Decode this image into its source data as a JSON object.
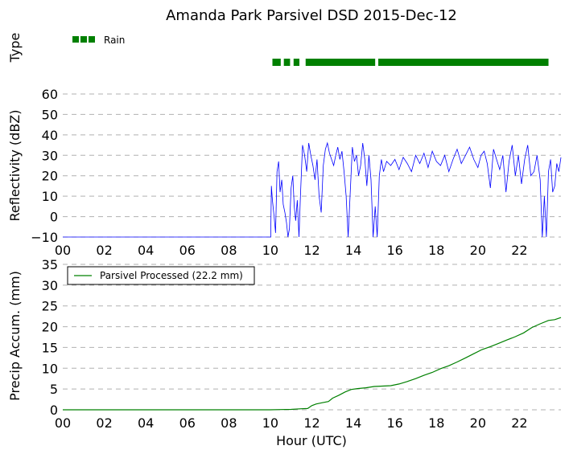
{
  "title": "Amanda Park Parsivel DSD 2015-Dec-12",
  "colors": {
    "rain": "#008000",
    "reflectivity": "#0000ff",
    "accum": "#008000",
    "grid": "#b0b0b0"
  },
  "chart_data": [
    {
      "type": "timeline",
      "ylabel": "Type",
      "legend": [
        "Rain"
      ],
      "segments": [
        {
          "label": "Rain",
          "start": 10.1,
          "end": 10.5
        },
        {
          "label": "Rain",
          "start": 10.65,
          "end": 10.95
        },
        {
          "label": "Rain",
          "start": 11.12,
          "end": 11.4
        },
        {
          "label": "Rain",
          "start": 11.7,
          "end": 15.05
        },
        {
          "label": "Rain",
          "start": 15.2,
          "end": 23.4
        }
      ]
    },
    {
      "type": "line",
      "ylabel": "Reflectivity (dBZ)",
      "xlim": [
        0,
        24
      ],
      "ylim": [
        -10,
        60
      ],
      "yticks": [
        -10,
        0,
        10,
        20,
        30,
        40,
        50,
        60
      ],
      "xticks": [
        "00",
        "02",
        "04",
        "06",
        "08",
        "10",
        "12",
        "14",
        "16",
        "18",
        "20",
        "22"
      ],
      "grid": true,
      "series": [
        {
          "x": [
            0,
            10.02,
            10.05,
            10.1,
            10.18,
            10.25,
            10.32,
            10.4,
            10.47,
            10.55,
            10.62,
            10.7,
            10.78,
            10.85,
            10.92,
            11.0,
            11.08,
            11.15,
            11.22,
            11.3,
            11.38,
            11.45,
            11.55,
            11.65,
            11.75,
            11.85,
            11.95,
            12.05,
            12.15,
            12.25,
            12.35,
            12.45,
            12.55,
            12.65,
            12.75,
            12.85,
            12.95,
            13.05,
            13.15,
            13.25,
            13.35,
            13.45,
            13.55,
            13.65,
            13.75,
            13.85,
            13.95,
            14.05,
            14.15,
            14.25,
            14.35,
            14.45,
            14.55,
            14.65,
            14.75,
            14.85,
            14.95,
            15.05,
            15.15,
            15.25,
            15.35,
            15.45,
            15.6,
            15.8,
            16.0,
            16.2,
            16.4,
            16.6,
            16.8,
            17.0,
            17.2,
            17.4,
            17.6,
            17.8,
            18.0,
            18.2,
            18.4,
            18.6,
            18.8,
            19.0,
            19.2,
            19.4,
            19.6,
            19.8,
            20.0,
            20.15,
            20.3,
            20.45,
            20.6,
            20.75,
            20.9,
            21.05,
            21.2,
            21.35,
            21.5,
            21.65,
            21.8,
            21.95,
            22.1,
            22.25,
            22.4,
            22.55,
            22.7,
            22.85,
            23.0,
            23.1,
            23.2,
            23.3,
            23.4,
            23.5,
            23.6,
            23.7,
            23.8,
            23.9,
            24.0
          ],
          "y": [
            -10,
            -10,
            15,
            8,
            0,
            -8,
            22,
            27,
            12,
            18,
            6,
            2,
            -3,
            -10,
            -6,
            14,
            20,
            5,
            -2,
            8,
            -10,
            10,
            35,
            30,
            22,
            36,
            30,
            25,
            18,
            28,
            10,
            2,
            25,
            33,
            36,
            31,
            28,
            25,
            30,
            34,
            28,
            32,
            22,
            10,
            -10,
            12,
            34,
            27,
            30,
            20,
            25,
            36,
            28,
            15,
            30,
            18,
            -10,
            5,
            -10,
            20,
            28,
            22,
            27,
            25,
            28,
            23,
            29,
            26,
            22,
            30,
            26,
            31,
            24,
            32,
            27,
            25,
            30,
            22,
            28,
            33,
            26,
            30,
            34,
            28,
            24,
            30,
            32,
            26,
            14,
            33,
            28,
            23,
            30,
            12,
            27,
            35,
            20,
            30,
            16,
            28,
            35,
            20,
            22,
            30,
            18,
            -10,
            10,
            -10,
            22,
            28,
            12,
            15,
            26,
            22,
            29
          ]
        }
      ]
    },
    {
      "type": "line",
      "ylabel": "Precip Accum. (mm)",
      "xlabel": "Hour (UTC)",
      "xlim": [
        0,
        24
      ],
      "ylim": [
        0,
        35
      ],
      "yticks": [
        0,
        5,
        10,
        15,
        20,
        25,
        30,
        35
      ],
      "xticks": [
        "00",
        "02",
        "04",
        "06",
        "08",
        "10",
        "12",
        "14",
        "16",
        "18",
        "20",
        "22"
      ],
      "grid": true,
      "legend_position": "top-left",
      "series": [
        {
          "name": "Parsivel Processed (22.2 mm)",
          "x": [
            0,
            10.0,
            10.5,
            11.0,
            11.5,
            11.8,
            12.0,
            12.2,
            12.5,
            12.8,
            13.0,
            13.3,
            13.6,
            13.9,
            14.2,
            14.6,
            15.0,
            15.4,
            15.8,
            16.2,
            16.6,
            17.0,
            17.4,
            17.8,
            18.2,
            18.6,
            19.0,
            19.4,
            19.8,
            20.2,
            20.6,
            21.0,
            21.4,
            21.8,
            22.2,
            22.6,
            23.0,
            23.4,
            23.7,
            24.0
          ],
          "y": [
            0,
            0,
            0.05,
            0.1,
            0.25,
            0.3,
            1.0,
            1.4,
            1.7,
            2.0,
            2.8,
            3.5,
            4.3,
            4.9,
            5.1,
            5.3,
            5.6,
            5.7,
            5.8,
            6.2,
            6.8,
            7.5,
            8.3,
            9.0,
            9.9,
            10.6,
            11.5,
            12.5,
            13.5,
            14.5,
            15.2,
            16.0,
            16.8,
            17.6,
            18.5,
            19.8,
            20.7,
            21.5,
            21.7,
            22.2
          ]
        }
      ]
    }
  ]
}
